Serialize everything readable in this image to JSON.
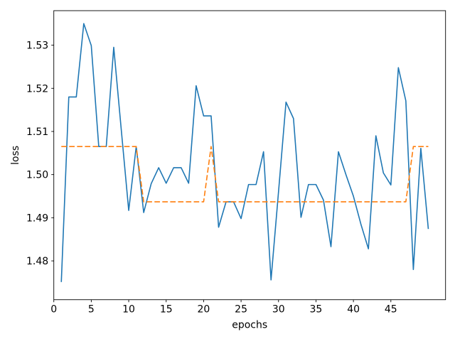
{
  "chart_data": {
    "type": "line",
    "title": "",
    "xlabel": "epochs",
    "ylabel": "loss",
    "xlim": [
      0,
      52.3
    ],
    "ylim": [
      1.471,
      1.538
    ],
    "xticks": [
      0,
      5,
      10,
      15,
      20,
      25,
      30,
      35,
      40,
      45
    ],
    "xtick_labels": [
      "0",
      "5",
      "10",
      "15",
      "20",
      "25",
      "30",
      "35",
      "40",
      "45"
    ],
    "yticks": [
      1.48,
      1.49,
      1.5,
      1.51,
      1.52,
      1.53
    ],
    "ytick_labels": [
      "1.48",
      "1.49",
      "1.50",
      "1.51",
      "1.52",
      "1.53"
    ],
    "grid": false,
    "legend": null,
    "background": "#ffffff",
    "spine_color": "#000000",
    "x": [
      1,
      2,
      3,
      4,
      5,
      6,
      7,
      8,
      9,
      10,
      11,
      12,
      13,
      14,
      15,
      16,
      17,
      18,
      19,
      20,
      21,
      22,
      23,
      24,
      25,
      26,
      27,
      28,
      29,
      30,
      31,
      32,
      33,
      34,
      35,
      36,
      37,
      38,
      39,
      40,
      41,
      42,
      43,
      44,
      45,
      46,
      47,
      48,
      49,
      50
    ],
    "series": [
      {
        "name": "loss-series",
        "color": "#1f77b4",
        "style": "solid",
        "values": [
          1.4751,
          1.518,
          1.518,
          1.535,
          1.5299,
          1.5065,
          1.5065,
          1.5295,
          1.5105,
          1.4917,
          1.5065,
          1.4912,
          1.4979,
          1.5016,
          1.498,
          1.5016,
          1.5016,
          1.498,
          1.5206,
          1.5136,
          1.5136,
          1.4878,
          1.4937,
          1.4937,
          1.4898,
          1.4977,
          1.4977,
          1.5053,
          1.4756,
          1.496,
          1.5168,
          1.513,
          1.4901,
          1.4977,
          1.4977,
          1.4941,
          1.4833,
          1.5053,
          1.5,
          1.495,
          1.4885,
          1.4828,
          1.509,
          1.5004,
          1.4976,
          1.5248,
          1.5171,
          1.478,
          1.5061,
          1.4874
        ]
      },
      {
        "name": "dashed-step-series",
        "color": "#ff7f0e",
        "style": "dashed",
        "values": [
          1.5065,
          1.5065,
          1.5065,
          1.5065,
          1.5065,
          1.5065,
          1.5065,
          1.5065,
          1.5065,
          1.5065,
          1.5065,
          1.4937,
          1.4937,
          1.4937,
          1.4937,
          1.4937,
          1.4937,
          1.4937,
          1.4937,
          1.4937,
          1.5065,
          1.4937,
          1.4937,
          1.4937,
          1.4937,
          1.4937,
          1.4937,
          1.4937,
          1.4937,
          1.4937,
          1.4937,
          1.4937,
          1.4937,
          1.4937,
          1.4937,
          1.4937,
          1.4937,
          1.4937,
          1.4937,
          1.4937,
          1.4937,
          1.4937,
          1.4937,
          1.4937,
          1.4937,
          1.4937,
          1.4937,
          1.5065,
          1.5065,
          1.5065
        ]
      }
    ]
  }
}
